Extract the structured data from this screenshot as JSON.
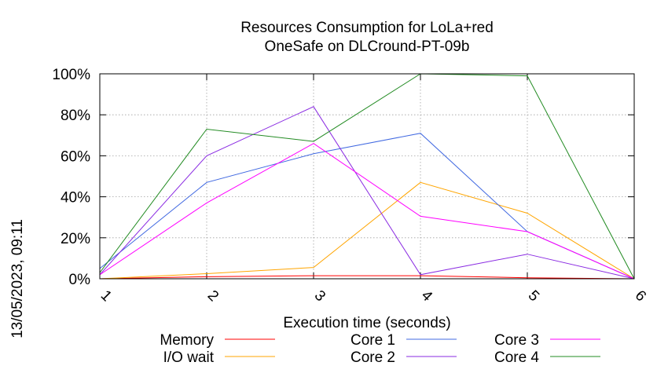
{
  "chart_data": {
    "type": "line",
    "title_line1": "Resources Consumption for LoLa+red",
    "title_line2": "OneSafe on DLCround-PT-09b",
    "xlabel": "Execution time (seconds)",
    "ylabel": "",
    "side_label": "13/05/2023, 09:11",
    "x": [
      1,
      2,
      3,
      4,
      5,
      6
    ],
    "x_tick_labels": [
      "1",
      "2",
      "3",
      "4",
      "5",
      "6"
    ],
    "xlim": [
      1,
      6
    ],
    "ylim": [
      0,
      100
    ],
    "y_ticks": [
      0,
      20,
      40,
      60,
      80,
      100
    ],
    "y_tick_labels": [
      "0%",
      "20%",
      "40%",
      "60%",
      "80%",
      "100%"
    ],
    "grid": true,
    "legend_position": "bottom",
    "series": [
      {
        "name": "Memory",
        "color": "#ff0000",
        "values": [
          0,
          1,
          1.5,
          1.5,
          0.5,
          0
        ]
      },
      {
        "name": "I/O wait",
        "color": "#ffa500",
        "values": [
          0,
          2.5,
          5.5,
          47,
          32,
          0
        ]
      },
      {
        "name": "Core 1",
        "color": "#4169e1",
        "values": [
          5,
          47,
          61,
          71,
          23,
          0
        ]
      },
      {
        "name": "Core 2",
        "color": "#8a2be2",
        "values": [
          2,
          60,
          84,
          2,
          12,
          0
        ]
      },
      {
        "name": "Core 3",
        "color": "#ff00ff",
        "values": [
          2,
          37,
          66,
          30.5,
          23,
          0
        ]
      },
      {
        "name": "Core 4",
        "color": "#228b22",
        "values": [
          3,
          73,
          67,
          100,
          99,
          0
        ]
      }
    ]
  }
}
